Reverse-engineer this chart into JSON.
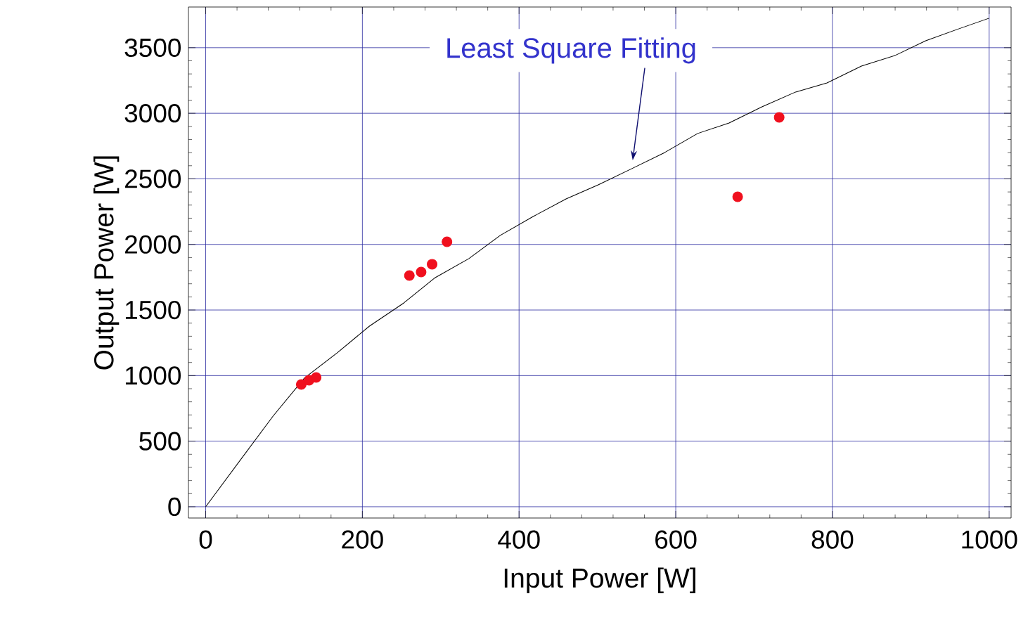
{
  "chart_data": {
    "type": "scatter",
    "xlabel": "Input Power [W]",
    "ylabel": "Output Power [W]",
    "xlim": [
      -22,
      1028
    ],
    "ylim": [
      -86,
      3810
    ],
    "xticks": [
      0,
      200,
      400,
      600,
      800,
      1000
    ],
    "yticks": [
      0,
      500,
      1000,
      1500,
      2000,
      2500,
      3000,
      3500
    ],
    "grid": true,
    "annotations": [
      "Least Square Fitting"
    ],
    "series": [
      {
        "color": "#f0101e",
        "marker": "circle",
        "x": [
          122,
          132,
          141,
          260,
          275,
          289,
          308,
          679,
          732
        ],
        "values": [
          932,
          965,
          986,
          1763,
          1790,
          1849,
          2020,
          2363,
          2969
        ]
      },
      {
        "type": "line",
        "color": "#000000",
        "marker": "none",
        "x": [
          0,
          46,
          86,
          126,
          168,
          209,
          253,
          293,
          336,
          376,
          418,
          460,
          501,
          544,
          586,
          628,
          668,
          710,
          753,
          793,
          837,
          880,
          919,
          959,
          1000
        ],
        "values": [
          0,
          370,
          691,
          981,
          1174,
          1377,
          1554,
          1747,
          1892,
          2069,
          2213,
          2347,
          2454,
          2578,
          2701,
          2846,
          2926,
          3049,
          3162,
          3231,
          3360,
          3441,
          3553,
          3639,
          3725
        ]
      }
    ]
  }
}
